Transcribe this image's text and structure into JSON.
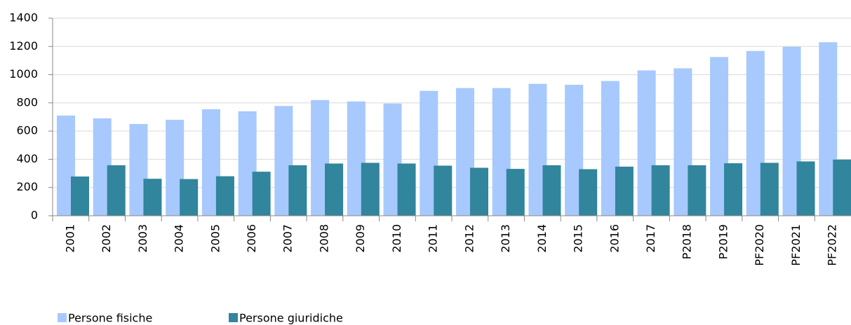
{
  "chart_data": {
    "type": "bar",
    "categories": [
      "2001",
      "2002",
      "2003",
      "2004",
      "2005",
      "2006",
      "2007",
      "2008",
      "2009",
      "2010",
      "2011",
      "2012",
      "2013",
      "2014",
      "2015",
      "2016",
      "2017",
      "P2018",
      "P2019",
      "PF2020",
      "PF2021",
      "PF2022"
    ],
    "series": [
      {
        "name": "Persone fisiche",
        "color": "#a7c9fd",
        "values": [
          710,
          690,
          650,
          680,
          755,
          740,
          778,
          820,
          810,
          795,
          885,
          905,
          905,
          935,
          928,
          955,
          1030,
          1045,
          1125,
          1168,
          1198,
          1230
        ]
      },
      {
        "name": "Persone giuridiche",
        "color": "#31859c",
        "values": [
          278,
          358,
          262,
          260,
          280,
          312,
          358,
          370,
          375,
          370,
          355,
          340,
          332,
          358,
          330,
          348,
          358,
          358,
          372,
          375,
          385,
          398
        ]
      }
    ],
    "ylim": [
      0,
      1400
    ],
    "yticks": [
      0,
      200,
      400,
      600,
      800,
      1000,
      1200,
      1400
    ],
    "grid": true
  }
}
